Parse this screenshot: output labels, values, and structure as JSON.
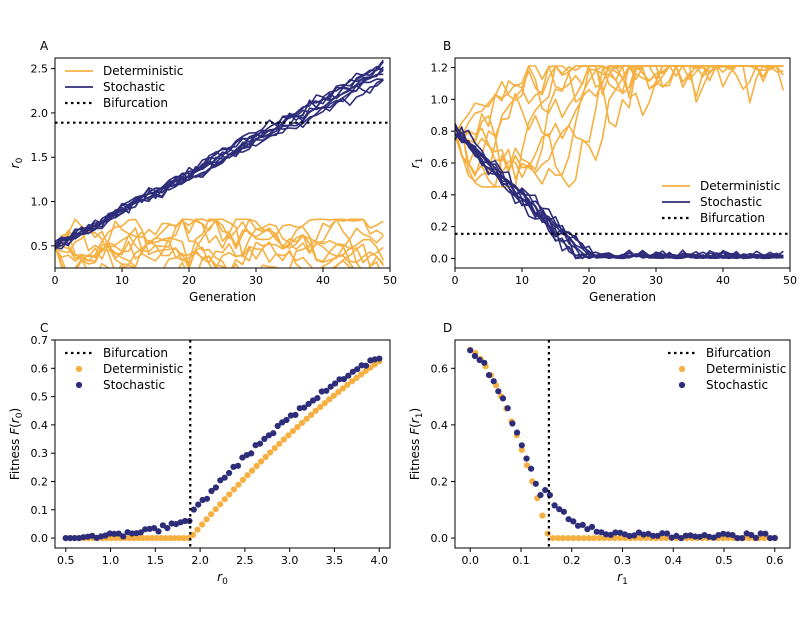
{
  "colors": {
    "deterministic": "#f5b041",
    "stochastic": "#2e2d7a",
    "bifurcation": "#000000"
  },
  "chart_data": [
    {
      "panel": "A",
      "type": "line",
      "xlabel": "Generation",
      "ylabel": "r",
      "ylabel_sub": "0",
      "xlim": [
        0,
        50
      ],
      "ylim": [
        0.25,
        2.62
      ],
      "xticks": [
        "0",
        "10",
        "20",
        "30",
        "40",
        "50"
      ],
      "yticks": [
        "0.5",
        "1.0",
        "1.5",
        "2.0",
        "2.5"
      ],
      "xtick_values": [
        0,
        10,
        20,
        30,
        40,
        50
      ],
      "ytick_values": [
        0.5,
        1.0,
        1.5,
        2.0,
        2.5
      ],
      "legend": [
        "Deterministic",
        "Stochastic",
        "Bifurcation"
      ],
      "legend_position": "top-left",
      "bifurcation": 1.89,
      "series": [
        {
          "name": "Deterministic",
          "generator": "random-walk",
          "count": 10,
          "start": 0.5,
          "start_spread": 0.03,
          "drift": 0.0,
          "noise": 0.1,
          "clip": [
            0.15,
            0.8
          ]
        },
        {
          "name": "Stochastic",
          "generator": "linear-trend",
          "count": 10,
          "start": 0.5,
          "end": 2.48,
          "end_spread": 0.12,
          "noise": 0.035
        }
      ]
    },
    {
      "panel": "B",
      "type": "line",
      "xlabel": "Generation",
      "ylabel": "r",
      "ylabel_sub": "1",
      "xlim": [
        0,
        50
      ],
      "ylim": [
        -0.06,
        1.26
      ],
      "xticks": [
        "0",
        "10",
        "20",
        "30",
        "40",
        "50"
      ],
      "yticks": [
        "0.0",
        "0.2",
        "0.4",
        "0.6",
        "0.8",
        "1.0",
        "1.2"
      ],
      "xtick_values": [
        0,
        10,
        20,
        30,
        40,
        50
      ],
      "ytick_values": [
        0.0,
        0.2,
        0.4,
        0.6,
        0.8,
        1.0,
        1.2
      ],
      "legend": [
        "Deterministic",
        "Stochastic",
        "Bifurcation"
      ],
      "legend_position": "center-right",
      "bifurcation": 0.155,
      "series": [
        {
          "name": "Deterministic",
          "generator": "random-walk",
          "count": 10,
          "start": 0.8,
          "start_spread": 0.03,
          "drift": 0.004,
          "noise": 0.11,
          "clip": [
            0.45,
            1.21
          ]
        },
        {
          "name": "Stochastic",
          "generator": "decay-to-floor",
          "count": 10,
          "start": 0.8,
          "floor": 0.0,
          "hit_generation": [
            17,
            21
          ],
          "noise": 0.03
        }
      ]
    },
    {
      "panel": "C",
      "type": "scatter",
      "xlabel": "r",
      "xlabel_sub": "0",
      "ylabel": "Fitness F(r",
      "ylabel_sub": "0",
      "xlim": [
        0.38,
        4.12
      ],
      "ylim": [
        -0.035,
        0.7
      ],
      "xticks": [
        "0.5",
        "1.0",
        "1.5",
        "2.0",
        "2.5",
        "3.0",
        "3.5",
        "4.0"
      ],
      "yticks": [
        "0.0",
        "0.1",
        "0.2",
        "0.3",
        "0.4",
        "0.5",
        "0.6",
        "0.7"
      ],
      "xtick_values": [
        0.5,
        1.0,
        1.5,
        2.0,
        2.5,
        3.0,
        3.5,
        4.0
      ],
      "ytick_values": [
        0.0,
        0.1,
        0.2,
        0.3,
        0.4,
        0.5,
        0.6,
        0.7
      ],
      "legend": [
        "Bifurcation",
        "Deterministic",
        "Stochastic"
      ],
      "legend_position": "top-left",
      "bifurcation": 1.89,
      "series": [
        {
          "name": "Deterministic",
          "generator": "fitness-r0-det",
          "x_range": [
            0.5,
            4.0
          ],
          "points": 70,
          "bifurcation": 1.89
        },
        {
          "name": "Stochastic",
          "generator": "fitness-r0-sto",
          "x_range": [
            0.5,
            4.0
          ],
          "points": 72
        }
      ]
    },
    {
      "panel": "D",
      "type": "scatter",
      "xlabel": "r",
      "xlabel_sub": "1",
      "ylabel": "Fitness F(r",
      "ylabel_sub": "1",
      "xlim": [
        -0.03,
        0.63
      ],
      "ylim": [
        -0.035,
        0.7
      ],
      "xticks": [
        "0.0",
        "0.1",
        "0.2",
        "0.3",
        "0.4",
        "0.5",
        "0.6"
      ],
      "yticks": [
        "0.0",
        "0.2",
        "0.4",
        "0.6"
      ],
      "xtick_values": [
        0.0,
        0.1,
        0.2,
        0.3,
        0.4,
        0.5,
        0.6
      ],
      "ytick_values": [
        0.0,
        0.2,
        0.4,
        0.6
      ],
      "legend": [
        "Bifurcation",
        "Deterministic",
        "Stochastic"
      ],
      "legend_position": "top-right",
      "bifurcation": 0.155,
      "series": [
        {
          "name": "Deterministic",
          "generator": "fitness-r1-det",
          "x_range": [
            0.0,
            0.6
          ],
          "points": 60,
          "bifurcation": 0.155
        },
        {
          "name": "Stochastic",
          "generator": "fitness-r1-sto",
          "x_range": [
            0.0,
            0.6
          ],
          "points": 66
        }
      ]
    }
  ]
}
